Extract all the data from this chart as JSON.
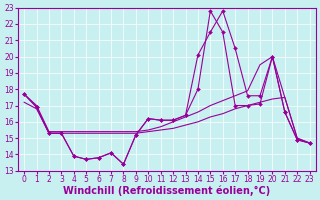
{
  "xlabel": "Windchill (Refroidissement éolien,°C)",
  "background_color": "#c8f0f0",
  "grid_color": "#ffffff",
  "line_color": "#990099",
  "xlim": [
    -0.5,
    23.5
  ],
  "ylim": [
    13,
    23
  ],
  "xticks": [
    0,
    1,
    2,
    3,
    4,
    5,
    6,
    7,
    8,
    9,
    10,
    11,
    12,
    13,
    14,
    15,
    16,
    17,
    18,
    19,
    20,
    21,
    22,
    23
  ],
  "yticks": [
    13,
    14,
    15,
    16,
    17,
    18,
    19,
    20,
    21,
    22,
    23
  ],
  "line1_x": [
    0,
    1,
    2,
    3,
    4,
    5,
    6,
    7,
    8,
    9,
    10,
    11,
    12,
    13,
    14,
    15,
    16,
    17,
    18,
    19,
    20,
    21,
    22,
    23
  ],
  "line1_y": [
    17.7,
    16.9,
    15.3,
    15.3,
    13.9,
    13.7,
    13.8,
    14.1,
    13.4,
    15.2,
    16.2,
    16.1,
    16.1,
    16.4,
    18.0,
    22.8,
    21.5,
    17.0,
    17.0,
    17.1,
    20.0,
    16.6,
    14.9,
    14.7
  ],
  "line2_x": [
    0,
    1,
    2,
    3,
    4,
    5,
    6,
    7,
    8,
    9,
    10,
    11,
    12,
    13,
    14,
    15,
    16,
    17,
    18,
    19,
    20,
    21,
    22,
    23
  ],
  "line2_y": [
    17.2,
    16.8,
    15.3,
    15.3,
    15.3,
    15.3,
    15.3,
    15.3,
    15.3,
    15.3,
    15.4,
    15.5,
    15.6,
    15.8,
    16.0,
    16.3,
    16.5,
    16.8,
    17.0,
    17.2,
    17.4,
    17.5,
    15.0,
    14.7
  ],
  "line3_x": [
    0,
    1,
    2,
    3,
    4,
    5,
    6,
    7,
    8,
    9,
    10,
    11,
    12,
    13,
    14,
    15,
    16,
    17,
    18,
    19,
    20,
    21,
    22,
    23
  ],
  "line3_y": [
    17.7,
    17.0,
    15.4,
    15.4,
    15.4,
    15.4,
    15.4,
    15.4,
    15.4,
    15.4,
    15.5,
    15.7,
    16.0,
    16.3,
    16.6,
    17.0,
    17.3,
    17.6,
    17.9,
    19.5,
    20.0,
    17.5,
    15.0,
    14.7
  ],
  "line4_x": [
    0,
    1,
    2,
    3,
    4,
    5,
    6,
    7,
    8,
    9,
    10,
    11,
    12,
    13,
    14,
    15,
    16,
    17,
    18,
    19,
    20,
    21,
    22,
    23
  ],
  "line4_y": [
    17.7,
    16.9,
    15.3,
    15.3,
    13.9,
    13.7,
    13.8,
    14.1,
    13.4,
    15.2,
    16.2,
    16.1,
    16.1,
    16.4,
    20.1,
    21.5,
    22.8,
    20.5,
    17.6,
    17.6,
    20.0,
    16.6,
    14.9,
    14.7
  ],
  "tick_fontsize": 5.5,
  "label_fontsize": 7.0
}
